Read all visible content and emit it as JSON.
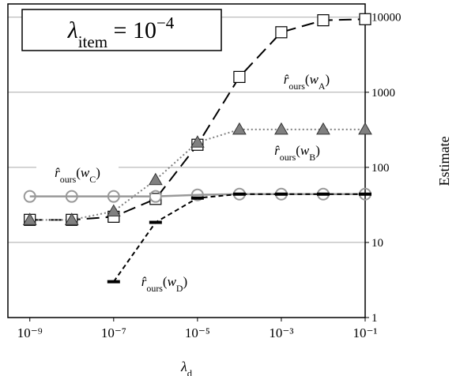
{
  "chart_data": {
    "type": "line",
    "log_x": true,
    "log_y": true,
    "grid": true,
    "y_axis_side": "right",
    "ylabel": "Estimate",
    "xlabel": {
      "parts": [
        {
          "t": "λ",
          "italic": true
        },
        {
          "t": "d",
          "sub": true
        }
      ]
    },
    "x": [
      1e-09,
      1e-08,
      1e-07,
      1e-06,
      1e-05,
      0.0001,
      0.001,
      0.01,
      0.1
    ],
    "xlim": [
      3e-10,
      0.1
    ],
    "xticks": [
      {
        "value": 1e-09,
        "label": "10⁻⁹"
      },
      {
        "value": 1e-07,
        "label": "10⁻⁷"
      },
      {
        "value": 1e-05,
        "label": "10⁻⁵"
      },
      {
        "value": 0.001,
        "label": "10⁻³"
      },
      {
        "value": 0.1,
        "label": "10⁻¹"
      }
    ],
    "ylim": [
      1,
      15000
    ],
    "yticks": [
      1,
      10,
      100,
      1000,
      10000
    ],
    "series": [
      {
        "marker": "square",
        "color": "#000000",
        "values": [
          20,
          20,
          22,
          38,
          200,
          1600,
          6300,
          9100,
          9400
        ]
      },
      {
        "marker": "triangle",
        "color": "#808080",
        "values": [
          20,
          20,
          26,
          68,
          215,
          320,
          320,
          320,
          320
        ]
      },
      {
        "marker": "circle",
        "color": "#999999",
        "values": [
          41,
          41,
          41,
          41,
          43,
          44,
          44,
          44,
          44
        ]
      },
      {
        "marker": "dash",
        "color": "#000000",
        "values": [
          null,
          null,
          3,
          18.5,
          39,
          44,
          44,
          44,
          44
        ]
      }
    ],
    "annotations": [
      {
        "boxed": true,
        "parts": [
          {
            "t": "λ",
            "italic": true
          },
          {
            "t": "item",
            "sub": true
          },
          {
            "t": " = 10"
          },
          {
            "t": "−4",
            "sup": true
          }
        ]
      },
      {
        "series": 0,
        "parts": [
          {
            "t": "r̂",
            "italic": true
          },
          {
            "t": "ours",
            "sub": true
          },
          {
            "t": "("
          },
          {
            "t": "w",
            "italic": true
          },
          {
            "t": "A",
            "sub": true
          },
          {
            "t": ")"
          }
        ]
      },
      {
        "series": 1,
        "parts": [
          {
            "t": "r̂",
            "italic": true
          },
          {
            "t": "ours",
            "sub": true
          },
          {
            "t": "("
          },
          {
            "t": "w",
            "italic": true
          },
          {
            "t": "B",
            "sub": true
          },
          {
            "t": ")"
          }
        ]
      },
      {
        "series": 2,
        "parts": [
          {
            "t": "r̂",
            "italic": true
          },
          {
            "t": "ours",
            "sub": true
          },
          {
            "t": "("
          },
          {
            "t": "w",
            "italic": true
          },
          {
            "t": "C",
            "sub": true
          },
          {
            "t": ")"
          }
        ]
      },
      {
        "series": 3,
        "parts": [
          {
            "t": "r̂",
            "italic": true
          },
          {
            "t": "ours",
            "sub": true
          },
          {
            "t": "("
          },
          {
            "t": "w",
            "italic": true
          },
          {
            "t": "D",
            "sub": true
          },
          {
            "t": ")"
          }
        ]
      }
    ]
  }
}
